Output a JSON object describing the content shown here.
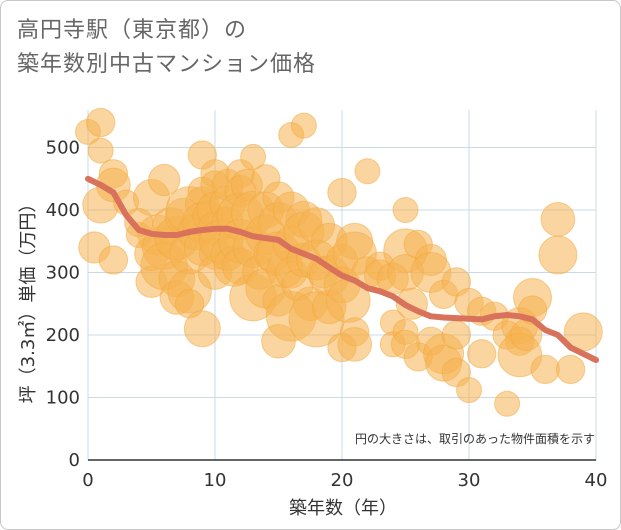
{
  "title_line1": "高円寺駅（東京都）の",
  "title_line2": "築年数別中古マンション価格",
  "note": "円の大きさは、取引のあった物件面積を示す",
  "colors": {
    "bubble": "#f5b351",
    "bubble_stroke": "#f2a73b",
    "line": "#d9725b",
    "grid": "#c9d9e8",
    "frame": "#c8c8c8"
  },
  "chart_data": {
    "type": "scatter",
    "xlabel": "築年数（年）",
    "ylabel": "坪（3.3㎡）単価（万円）",
    "xlim": [
      0,
      40
    ],
    "ylim": [
      0,
      560
    ],
    "xticks": [
      0,
      10,
      20,
      30,
      40
    ],
    "yticks": [
      0,
      100,
      200,
      300,
      400,
      500
    ],
    "grid": true,
    "trend_line": {
      "x": [
        0,
        1,
        2,
        3,
        4,
        5,
        6,
        7,
        8,
        9,
        10,
        11,
        12,
        13,
        14,
        15,
        16,
        17,
        18,
        19,
        20,
        21,
        22,
        23,
        24,
        25,
        26,
        27,
        28,
        29,
        30,
        31,
        32,
        33,
        34,
        35,
        36,
        37,
        38,
        39,
        40
      ],
      "y": [
        450,
        440,
        428,
        392,
        368,
        362,
        360,
        360,
        365,
        368,
        370,
        370,
        365,
        358,
        355,
        352,
        338,
        330,
        322,
        308,
        295,
        287,
        275,
        270,
        262,
        248,
        238,
        230,
        228,
        227,
        226,
        225,
        230,
        232,
        230,
        225,
        208,
        200,
        180,
        170,
        160
      ]
    },
    "bubbles": [
      {
        "x": 0,
        "y": 525,
        "s": 1
      },
      {
        "x": 0.5,
        "y": 340,
        "s": 2
      },
      {
        "x": 1,
        "y": 495,
        "s": 1
      },
      {
        "x": 1,
        "y": 540,
        "s": 1.5
      },
      {
        "x": 1,
        "y": 408,
        "s": 3
      },
      {
        "x": 2,
        "y": 458,
        "s": 1.5
      },
      {
        "x": 2,
        "y": 440,
        "s": 2.5
      },
      {
        "x": 2,
        "y": 320,
        "s": 1.5
      },
      {
        "x": 3,
        "y": 412,
        "s": 1
      },
      {
        "x": 4,
        "y": 380,
        "s": 1.5
      },
      {
        "x": 4,
        "y": 360,
        "s": 1
      },
      {
        "x": 5,
        "y": 420,
        "s": 3
      },
      {
        "x": 5,
        "y": 330,
        "s": 2.5
      },
      {
        "x": 5,
        "y": 285,
        "s": 2
      },
      {
        "x": 5.5,
        "y": 360,
        "s": 4
      },
      {
        "x": 6,
        "y": 448,
        "s": 2
      },
      {
        "x": 6,
        "y": 340,
        "s": 5
      },
      {
        "x": 6,
        "y": 310,
        "s": 6
      },
      {
        "x": 6.5,
        "y": 375,
        "s": 3
      },
      {
        "x": 7,
        "y": 355,
        "s": 5
      },
      {
        "x": 7,
        "y": 290,
        "s": 3
      },
      {
        "x": 7,
        "y": 260,
        "s": 2.5
      },
      {
        "x": 7.5,
        "y": 390,
        "s": 3
      },
      {
        "x": 8,
        "y": 400,
        "s": 6
      },
      {
        "x": 8,
        "y": 330,
        "s": 4
      },
      {
        "x": 8,
        "y": 270,
        "s": 5
      },
      {
        "x": 8,
        "y": 250,
        "s": 1.5
      },
      {
        "x": 8.5,
        "y": 365,
        "s": 3
      },
      {
        "x": 9,
        "y": 488,
        "s": 1.5
      },
      {
        "x": 9,
        "y": 430,
        "s": 1.5
      },
      {
        "x": 9,
        "y": 410,
        "s": 2.5
      },
      {
        "x": 9,
        "y": 380,
        "s": 4
      },
      {
        "x": 9,
        "y": 340,
        "s": 3
      },
      {
        "x": 9,
        "y": 210,
        "s": 3
      },
      {
        "x": 9.5,
        "y": 390,
        "s": 2
      },
      {
        "x": 10,
        "y": 458,
        "s": 1.5
      },
      {
        "x": 10,
        "y": 440,
        "s": 1.5
      },
      {
        "x": 10,
        "y": 400,
        "s": 3
      },
      {
        "x": 10,
        "y": 370,
        "s": 2.5
      },
      {
        "x": 10,
        "y": 330,
        "s": 2
      },
      {
        "x": 10,
        "y": 300,
        "s": 2.5
      },
      {
        "x": 10.5,
        "y": 350,
        "s": 5
      },
      {
        "x": 11,
        "y": 440,
        "s": 2
      },
      {
        "x": 11,
        "y": 410,
        "s": 3
      },
      {
        "x": 11,
        "y": 380,
        "s": 2
      },
      {
        "x": 11,
        "y": 330,
        "s": 2.5
      },
      {
        "x": 11.5,
        "y": 310,
        "s": 4
      },
      {
        "x": 12,
        "y": 458,
        "s": 1.5
      },
      {
        "x": 12,
        "y": 430,
        "s": 2
      },
      {
        "x": 12,
        "y": 390,
        "s": 6
      },
      {
        "x": 12,
        "y": 350,
        "s": 5
      },
      {
        "x": 12,
        "y": 310,
        "s": 3
      },
      {
        "x": 12.5,
        "y": 440,
        "s": 2
      },
      {
        "x": 13,
        "y": 485,
        "s": 1
      },
      {
        "x": 13,
        "y": 395,
        "s": 5
      },
      {
        "x": 13,
        "y": 340,
        "s": 4
      },
      {
        "x": 13,
        "y": 260,
        "s": 6
      },
      {
        "x": 13.5,
        "y": 300,
        "s": 2.5
      },
      {
        "x": 14,
        "y": 450,
        "s": 1.5
      },
      {
        "x": 14,
        "y": 400,
        "s": 3
      },
      {
        "x": 14,
        "y": 360,
        "s": 4
      },
      {
        "x": 14,
        "y": 275,
        "s": 4
      },
      {
        "x": 14.5,
        "y": 330,
        "s": 3
      },
      {
        "x": 15,
        "y": 420,
        "s": 2
      },
      {
        "x": 15,
        "y": 380,
        "s": 4
      },
      {
        "x": 15,
        "y": 330,
        "s": 5
      },
      {
        "x": 15,
        "y": 255,
        "s": 2
      },
      {
        "x": 15,
        "y": 190,
        "s": 2.5
      },
      {
        "x": 15.5,
        "y": 305,
        "s": 3
      },
      {
        "x": 16,
        "y": 520,
        "s": 1
      },
      {
        "x": 16,
        "y": 400,
        "s": 3
      },
      {
        "x": 16,
        "y": 345,
        "s": 3
      },
      {
        "x": 16,
        "y": 300,
        "s": 2
      },
      {
        "x": 16,
        "y": 230,
        "s": 7
      },
      {
        "x": 16.5,
        "y": 280,
        "s": 2
      },
      {
        "x": 17,
        "y": 535,
        "s": 1
      },
      {
        "x": 17,
        "y": 385,
        "s": 3
      },
      {
        "x": 17,
        "y": 365,
        "s": 4
      },
      {
        "x": 17,
        "y": 320,
        "s": 2.5
      },
      {
        "x": 17.5,
        "y": 250,
        "s": 2.5
      },
      {
        "x": 18,
        "y": 375,
        "s": 3
      },
      {
        "x": 18,
        "y": 320,
        "s": 4
      },
      {
        "x": 18,
        "y": 225,
        "s": 9
      },
      {
        "x": 18.5,
        "y": 300,
        "s": 2
      },
      {
        "x": 19,
        "y": 350,
        "s": 3
      },
      {
        "x": 19,
        "y": 295,
        "s": 4
      },
      {
        "x": 19,
        "y": 245,
        "s": 2.5
      },
      {
        "x": 20,
        "y": 428,
        "s": 1.5
      },
      {
        "x": 20,
        "y": 320,
        "s": 2
      },
      {
        "x": 20,
        "y": 280,
        "s": 3
      },
      {
        "x": 20,
        "y": 180,
        "s": 1.5
      },
      {
        "x": 20.5,
        "y": 255,
        "s": 5
      },
      {
        "x": 21,
        "y": 350,
        "s": 3
      },
      {
        "x": 21,
        "y": 330,
        "s": 5
      },
      {
        "x": 21,
        "y": 205,
        "s": 1.5
      },
      {
        "x": 21,
        "y": 185,
        "s": 2.5
      },
      {
        "x": 22,
        "y": 462,
        "s": 1
      },
      {
        "x": 22,
        "y": 300,
        "s": 2
      },
      {
        "x": 23,
        "y": 310,
        "s": 1.5
      },
      {
        "x": 23,
        "y": 295,
        "s": 2
      },
      {
        "x": 24,
        "y": 290,
        "s": 2
      },
      {
        "x": 24,
        "y": 220,
        "s": 1
      },
      {
        "x": 24,
        "y": 185,
        "s": 1
      },
      {
        "x": 25,
        "y": 400,
        "s": 1
      },
      {
        "x": 25,
        "y": 335,
        "s": 5
      },
      {
        "x": 25,
        "y": 300,
        "s": 3
      },
      {
        "x": 25,
        "y": 205,
        "s": 1
      },
      {
        "x": 25,
        "y": 185,
        "s": 1.5
      },
      {
        "x": 25.5,
        "y": 250,
        "s": 2
      },
      {
        "x": 26,
        "y": 345,
        "s": 1.5
      },
      {
        "x": 26,
        "y": 165,
        "s": 1.5
      },
      {
        "x": 27,
        "y": 320,
        "s": 2
      },
      {
        "x": 27,
        "y": 300,
        "s": 4
      },
      {
        "x": 27,
        "y": 190,
        "s": 1.5
      },
      {
        "x": 28,
        "y": 265,
        "s": 1.5
      },
      {
        "x": 28,
        "y": 170,
        "s": 4
      },
      {
        "x": 28,
        "y": 155,
        "s": 3
      },
      {
        "x": 29,
        "y": 285,
        "s": 1.5
      },
      {
        "x": 29,
        "y": 200,
        "s": 1.5
      },
      {
        "x": 29,
        "y": 140,
        "s": 1.5
      },
      {
        "x": 30,
        "y": 252,
        "s": 1.5
      },
      {
        "x": 30,
        "y": 112,
        "s": 1
      },
      {
        "x": 31,
        "y": 238,
        "s": 1.5
      },
      {
        "x": 31,
        "y": 170,
        "s": 1.5
      },
      {
        "x": 32,
        "y": 230,
        "s": 1.5
      },
      {
        "x": 33,
        "y": 90,
        "s": 1
      },
      {
        "x": 33,
        "y": 200,
        "s": 1.5
      },
      {
        "x": 34,
        "y": 215,
        "s": 3
      },
      {
        "x": 34,
        "y": 190,
        "s": 1.5
      },
      {
        "x": 34,
        "y": 168,
        "s": 5
      },
      {
        "x": 34.5,
        "y": 200,
        "s": 2
      },
      {
        "x": 35,
        "y": 260,
        "s": 3.5
      },
      {
        "x": 35,
        "y": 240,
        "s": 1.5
      },
      {
        "x": 36,
        "y": 145,
        "s": 1.5
      },
      {
        "x": 37,
        "y": 385,
        "s": 2.5
      },
      {
        "x": 37,
        "y": 328,
        "s": 3.5
      },
      {
        "x": 38,
        "y": 145,
        "s": 1.5
      },
      {
        "x": 39,
        "y": 205,
        "s": 3.5
      }
    ]
  }
}
